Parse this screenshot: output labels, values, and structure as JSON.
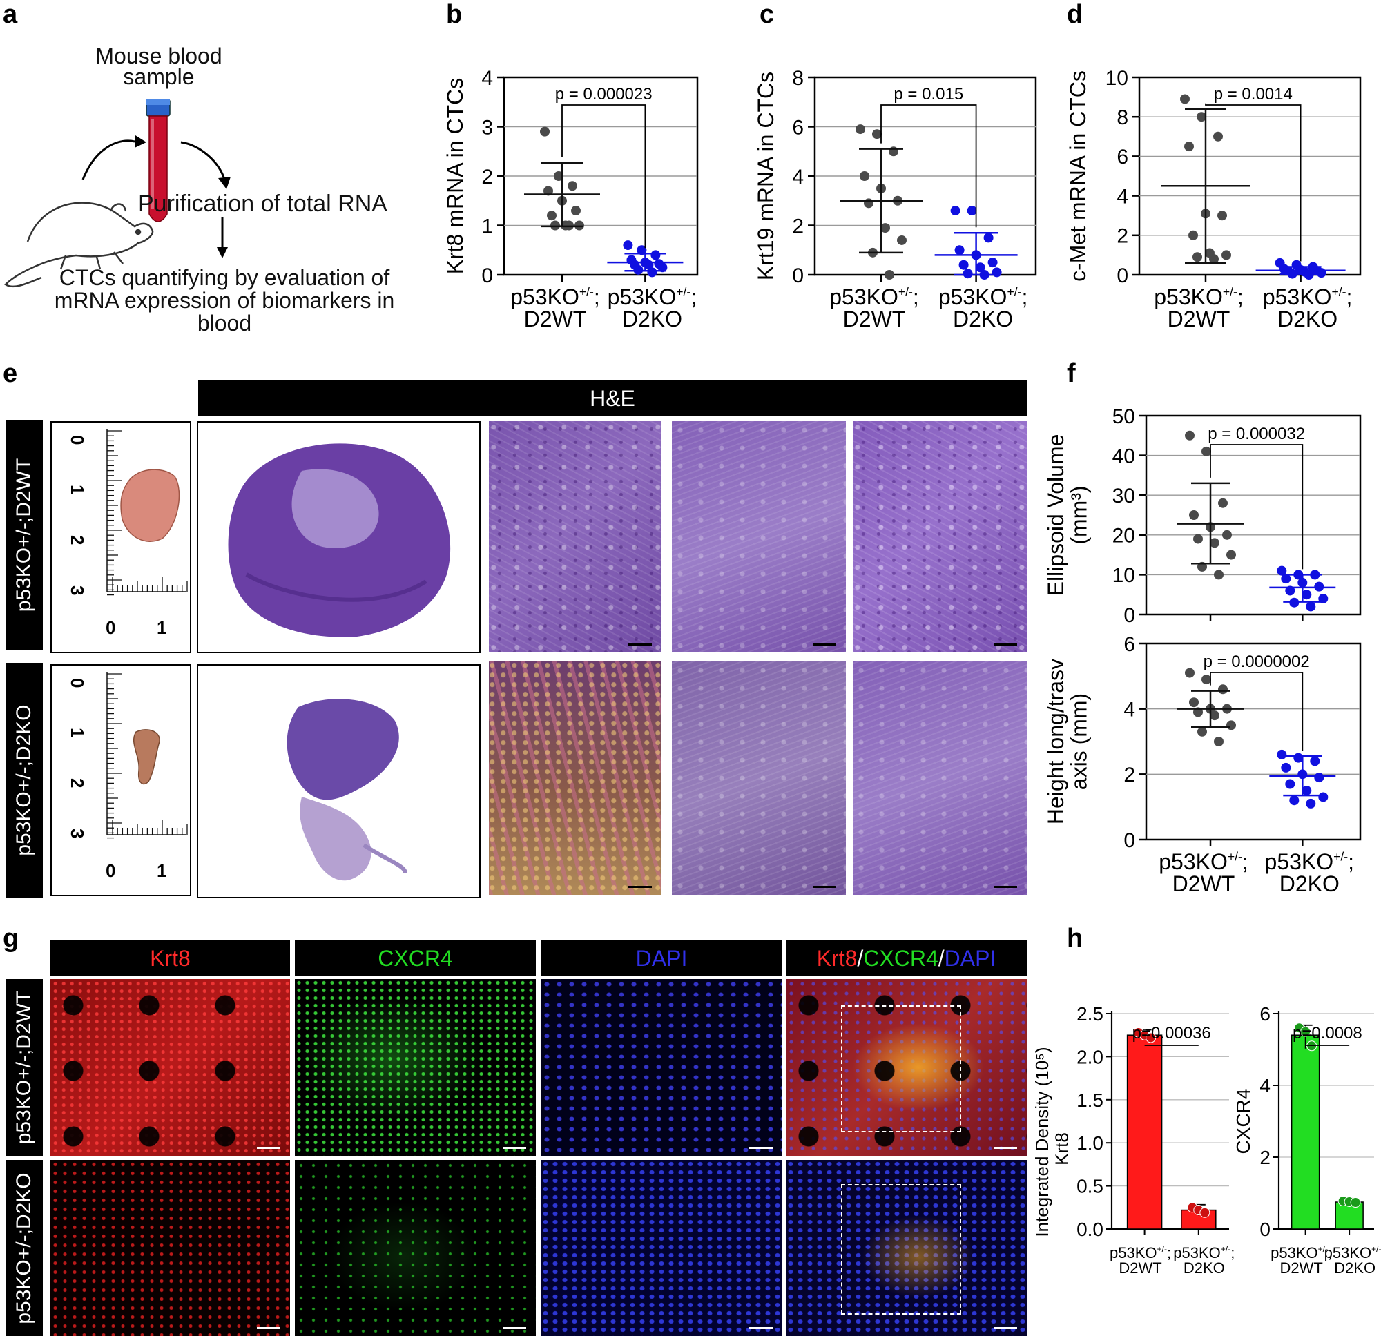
{
  "panel_labels": {
    "a": "a",
    "b": "b",
    "c": "c",
    "d": "d",
    "e": "e",
    "f": "f",
    "g": "g",
    "h": "h"
  },
  "panel_a": {
    "sample": "Mouse blood sample",
    "step1": "Purification of total RNA",
    "step2": "CTCs quantifying by evaluation of mRNA expression of biomarkers in blood"
  },
  "chart_data": [
    {
      "id": "b",
      "type": "scatter",
      "ylabel": "Krt8 mRNA in CTCs",
      "ylim": [
        0,
        4
      ],
      "yticks": [
        "0",
        "1",
        "2",
        "3",
        "4"
      ],
      "categories": [
        "p53KO+/-; D2WT",
        "p53KO+/-; D2KO"
      ],
      "pvalue": "p = 0.000023",
      "series": [
        {
          "values": [
            2.9,
            2.0,
            1.8,
            1.7,
            1.5,
            1.3,
            1.2,
            1.0,
            1.0,
            1.0,
            1.0
          ],
          "mean": 1.63,
          "sd_low": 0.98,
          "sd_high": 2.27,
          "color": "#4a4a4a"
        },
        {
          "values": [
            0.6,
            0.5,
            0.4,
            0.3,
            0.25,
            0.22,
            0.2,
            0.2,
            0.15,
            0.1,
            0.05
          ],
          "mean": 0.25,
          "sd_low": 0.08,
          "sd_high": 0.43,
          "color": "#1010e0"
        }
      ]
    },
    {
      "id": "c",
      "type": "scatter",
      "ylabel": "Krt19 mRNA in CTCs",
      "ylim": [
        0,
        8
      ],
      "yticks": [
        "0",
        "2",
        "4",
        "6",
        "8"
      ],
      "categories": [
        "p53KO+/-; D2WT",
        "p53KO+/-; D2KO"
      ],
      "pvalue": "p = 0.015",
      "series": [
        {
          "values": [
            5.9,
            5.7,
            5.0,
            4.0,
            3.5,
            3.0,
            2.9,
            1.9,
            1.4,
            0.9,
            0.0
          ],
          "mean": 3.0,
          "sd_low": 0.9,
          "sd_high": 5.1,
          "color": "#4a4a4a"
        },
        {
          "values": [
            2.6,
            2.6,
            1.5,
            1.0,
            0.8,
            0.5,
            0.4,
            0.3,
            0.1,
            0.05,
            0.0
          ],
          "mean": 0.8,
          "sd_low": 0.0,
          "sd_high": 1.7,
          "color": "#1010e0"
        }
      ]
    },
    {
      "id": "d",
      "type": "scatter",
      "ylabel": "c-Met mRNA in CTCs",
      "ylim": [
        0,
        10
      ],
      "yticks": [
        "0",
        "2",
        "4",
        "6",
        "8",
        "10"
      ],
      "categories": [
        "p53KO+/-; D2WT",
        "p53KO+/-; D2KO"
      ],
      "pvalue": "p = 0.0014",
      "series": [
        {
          "values": [
            8.9,
            8.0,
            7.0,
            6.5,
            3.1,
            3.0,
            2.0,
            1.1,
            1.0,
            0.9,
            0.8
          ],
          "mean": 4.5,
          "sd_low": 0.6,
          "sd_high": 8.4,
          "color": "#4a4a4a"
        },
        {
          "values": [
            0.6,
            0.5,
            0.4,
            0.3,
            0.25,
            0.2,
            0.2,
            0.15,
            0.1,
            0.05,
            0.0
          ],
          "mean": 0.22,
          "sd_low": 0.05,
          "sd_high": 0.4,
          "color": "#1010e0"
        }
      ]
    },
    {
      "id": "f1",
      "type": "scatter",
      "ylabel": "Ellipsoid Volume",
      "ylabel2": "(mm³)",
      "ylim": [
        0,
        50
      ],
      "yticks": [
        "0",
        "10",
        "20",
        "30",
        "40",
        "50"
      ],
      "categories": [
        "",
        ""
      ],
      "pvalue": "p = 0.000032",
      "series": [
        {
          "values": [
            45,
            41,
            28,
            25,
            22,
            20,
            19,
            18,
            15,
            12,
            10
          ],
          "mean": 22.8,
          "sd_low": 12.8,
          "sd_high": 33,
          "color": "#4a4a4a"
        },
        {
          "values": [
            11,
            10,
            10,
            9,
            8,
            7,
            6,
            5,
            4,
            3,
            2
          ],
          "mean": 6.8,
          "sd_low": 3.2,
          "sd_high": 10,
          "color": "#1010e0"
        }
      ]
    },
    {
      "id": "f2",
      "type": "scatter",
      "ylabel": "Height long/trasv",
      "ylabel2": "axis (mm)",
      "ylim": [
        0,
        6
      ],
      "yticks": [
        "0",
        "2",
        "4",
        "6"
      ],
      "categories": [
        "p53KO+/-; D2WT",
        "p53KO+/-; D2KO"
      ],
      "pvalue": "p = 0.0000002",
      "series": [
        {
          "values": [
            5.1,
            4.9,
            4.6,
            4.2,
            4.0,
            4.0,
            3.9,
            3.8,
            3.5,
            3.3,
            3.0
          ],
          "mean": 4.0,
          "sd_low": 3.45,
          "sd_high": 4.55,
          "color": "#4a4a4a"
        },
        {
          "values": [
            2.6,
            2.5,
            2.4,
            2.2,
            2.0,
            1.9,
            1.7,
            1.5,
            1.3,
            1.2,
            1.1
          ],
          "mean": 1.95,
          "sd_low": 1.35,
          "sd_high": 2.55,
          "color": "#1010e0"
        }
      ]
    },
    {
      "id": "h1",
      "type": "bar",
      "ylabel": "Integrated Density (10⁵)",
      "ylabel_sub": "Krt8",
      "ylim": [
        0,
        2.5
      ],
      "yticks": [
        "0.0",
        "0.5",
        "1.0",
        "1.5",
        "2.0",
        "2.5"
      ],
      "categories": [
        "p53KO+/-; D2WT",
        "p53KO+/-; D2KO"
      ],
      "values": [
        2.25,
        0.22
      ],
      "points": [
        [
          2.28,
          2.25,
          2.22
        ],
        [
          0.25,
          0.22,
          0.19
        ]
      ],
      "pvalue": "p=0.00036",
      "color": "#ff1a1a",
      "dot": "#cc1010"
    },
    {
      "id": "h2",
      "type": "bar",
      "ylabel": "CXCR4",
      "ylim": [
        0,
        6
      ],
      "yticks": [
        "0",
        "2",
        "4",
        "6"
      ],
      "categories": [
        "p53KO+/-; D2WT",
        "p53KO+/-; D2KO"
      ],
      "values": [
        5.4,
        0.75
      ],
      "points": [
        [
          5.6,
          5.5,
          5.1
        ],
        [
          0.78,
          0.76,
          0.74
        ]
      ],
      "pvalue": "p=0.0008",
      "color": "#22dd22",
      "dot": "#1a9a1a"
    }
  ],
  "panel_e": {
    "header": "H&E",
    "row1": "p53KO+/-;D2WT",
    "row2": "p53KO+/-;D2KO",
    "ruler_ticks": [
      "0",
      "1",
      "2",
      "3"
    ],
    "ruler_h": [
      "0",
      "1"
    ]
  },
  "panel_g": {
    "headers": [
      "Krt8",
      "CXCR4",
      "DAPI"
    ],
    "merge": {
      "a": "Krt8",
      "s1": "/",
      "b": "CXCR4",
      "s2": "/",
      "c": "DAPI"
    },
    "row1": "p53KO+/-;D2WT",
    "row2": "p53KO+/-;D2KO"
  }
}
